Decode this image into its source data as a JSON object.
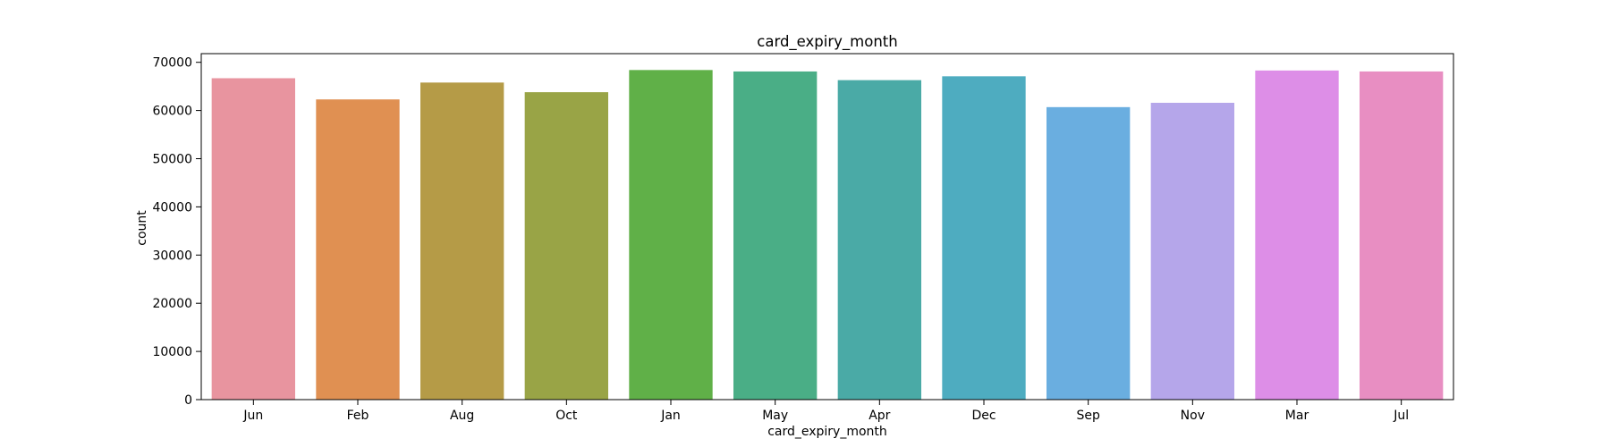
{
  "chart_data": {
    "type": "bar",
    "title": "card_expiry_month",
    "xlabel": "card_expiry_month",
    "ylabel": "count",
    "categories": [
      "Jun",
      "Feb",
      "Aug",
      "Oct",
      "Jan",
      "May",
      "Apr",
      "Dec",
      "Sep",
      "Nov",
      "Mar",
      "Jul"
    ],
    "values": [
      66700,
      62300,
      65800,
      63800,
      68400,
      68100,
      66300,
      67100,
      60700,
      61600,
      68300,
      68100
    ],
    "colors": [
      "#e8949f",
      "#e09052",
      "#b59b47",
      "#99a446",
      "#60b048",
      "#4aae86",
      "#4aaaa6",
      "#4eacc0",
      "#6aaee0",
      "#b5a6ea",
      "#dd8ee7",
      "#e88ec2"
    ],
    "yticks": [
      0,
      10000,
      20000,
      30000,
      40000,
      50000,
      60000,
      70000
    ],
    "ylim": [
      0,
      71800
    ],
    "grid": false
  }
}
